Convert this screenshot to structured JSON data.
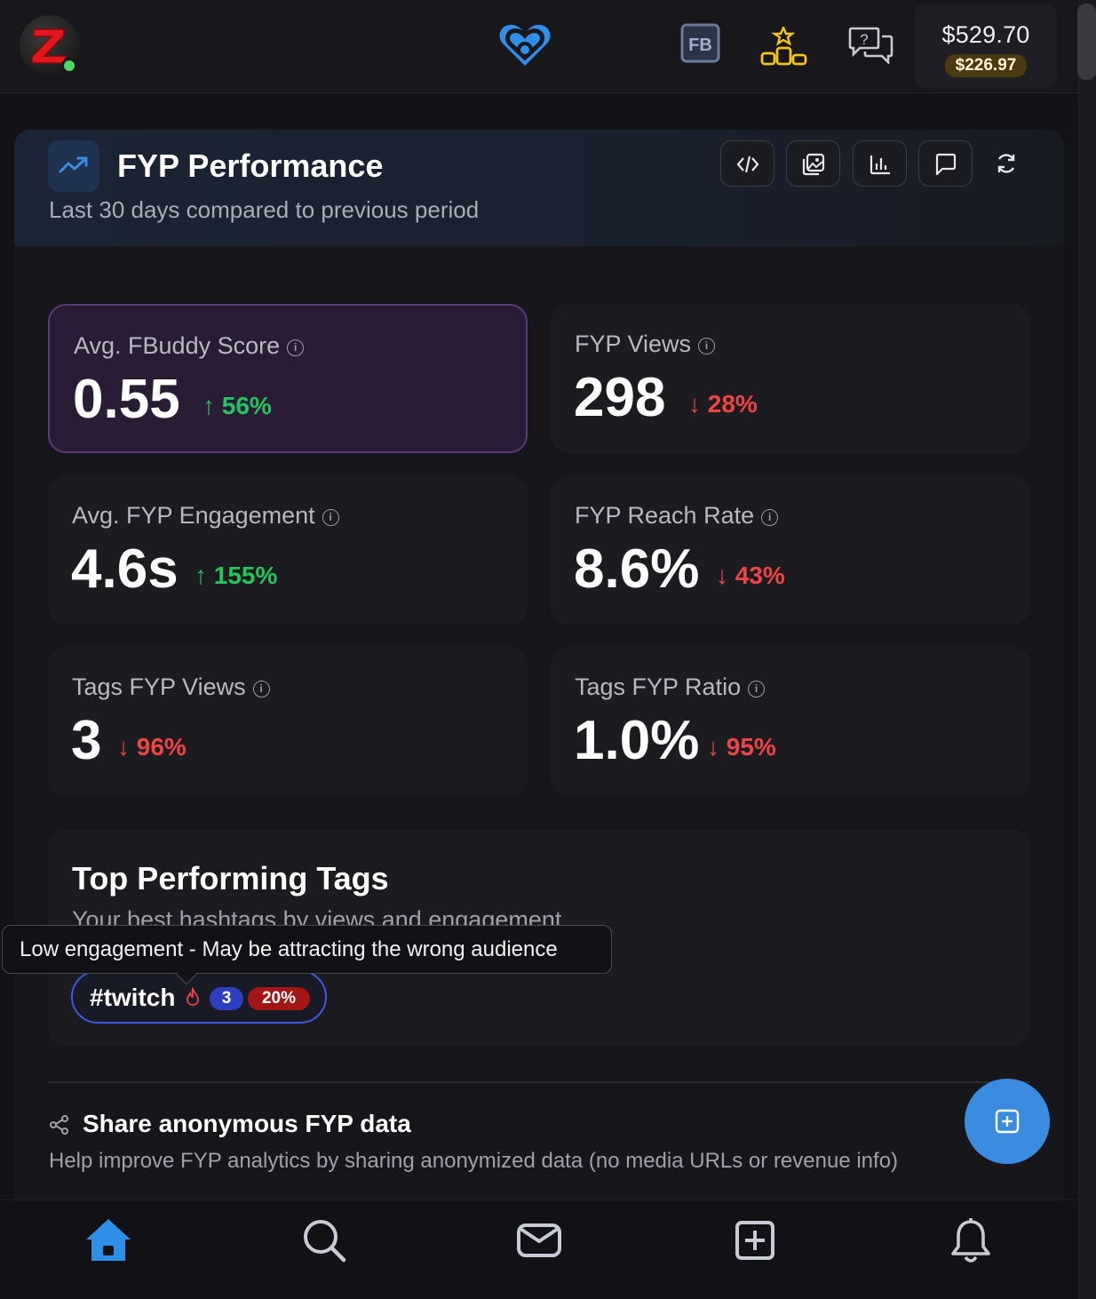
{
  "header": {
    "avatar_letter": "Z",
    "fb_badge": "FB",
    "balance_main": "$529.70",
    "balance_sub": "$226.97",
    "icons": [
      "avatar",
      "heart-logo-icon",
      "fb-icon",
      "leaderboard-icon",
      "help-chat-icon"
    ],
    "colors": {
      "logo": "#2f8ee5",
      "leaderboard": "#f5c518",
      "online": "#4cd964"
    }
  },
  "panel": {
    "title": "FYP Performance",
    "subtitle": "Last 30 days compared to previous period",
    "toolbar": [
      "code-icon",
      "gallery-icon",
      "bar-chart-icon",
      "comment-icon",
      "refresh-icon"
    ]
  },
  "metrics": [
    {
      "label": "Avg. FBuddy Score",
      "value": "0.55",
      "delta": "56%",
      "direction": "up"
    },
    {
      "label": "FYP Views",
      "value": "298",
      "delta": "28%",
      "direction": "down"
    },
    {
      "label": "Avg. FYP Engagement",
      "value": "4.6s",
      "delta": "155%",
      "direction": "up"
    },
    {
      "label": "FYP Reach Rate",
      "value": "8.6%",
      "delta": "43%",
      "direction": "down"
    },
    {
      "label": "Tags FYP Views",
      "value": "3",
      "delta": "96%",
      "direction": "down"
    },
    {
      "label": "Tags FYP Ratio",
      "value": "1.0%",
      "delta": "95%",
      "direction": "down"
    }
  ],
  "tags": {
    "title": "Top Performing Tags",
    "subtitle": "Your best hashtags by views and engagement",
    "items": [
      {
        "name": "#twitch",
        "count": "3",
        "percent": "20%"
      }
    ],
    "tooltip": "Low engagement - May be attracting the wrong audience"
  },
  "share": {
    "title": "Share anonymous FYP data",
    "description": "Help improve FYP analytics by sharing anonymized data (no media URLs or revenue info)"
  },
  "bottom_nav": [
    "home-icon",
    "search-icon",
    "messages-icon",
    "create-icon",
    "notifications-icon"
  ],
  "colors": {
    "accent": "#2f8ee5",
    "up": "#22c55e",
    "down": "#ef4444"
  }
}
